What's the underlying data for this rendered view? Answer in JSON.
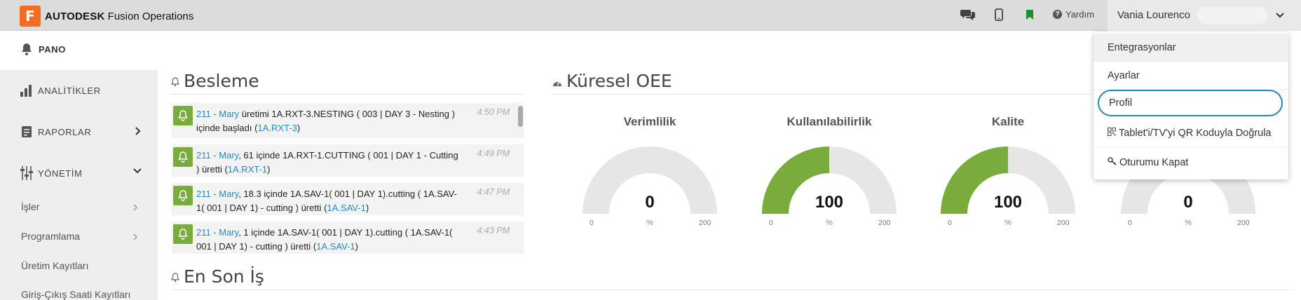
{
  "brand": {
    "logo_letter": "F",
    "name_bold": "AUTODESK",
    "name_rest": " Fusion Operations"
  },
  "topbar": {
    "chat_icon": "chat-bubbles-icon",
    "mobile_icon": "mobile-phone-icon",
    "bookmark_icon": "bookmark-icon",
    "help_label": "Yardım",
    "user_name": "Vania Lourenco"
  },
  "sidebar": {
    "pano": "PANO",
    "analytics": "ANALİTİKLER",
    "reports": "RAPORLAR",
    "management": "YÖNETİM",
    "sub_items": [
      "İşler",
      "Programlama",
      "Üretim Kayıtları",
      "Giriş-Çıkış Saati Kayıtları"
    ]
  },
  "feed": {
    "title": "Besleme",
    "items": [
      {
        "who": "211 - Mary",
        "text": " üretimi 1A.RXT-3.NESTING ( 003 | DAY 3 - Nesting ) içinde başladı (",
        "link": "1A.RXT-3",
        "end": ")",
        "time": "4:50 PM"
      },
      {
        "who": "211 - Mary",
        "text": ", 61 içinde 1A.RXT-1.CUTTING ( 001 | DAY 1 - Cutting ) üretti (",
        "link": "1A.RXT-1",
        "end": ")",
        "time": "4:49 PM"
      },
      {
        "who": "211 - Mary",
        "text": ", 18.3 içinde 1A.SAV-1( 001 | DAY 1).cutting ( 1A.SAV-1( 001 | DAY 1) - cutting ) üretti (",
        "link": "1A.SAV-1",
        "end": ")",
        "time": "4:47 PM"
      },
      {
        "who": "211 - Mary",
        "text": ", 1 içinde 1A.SAV-1( 001 | DAY 1).cutting ( 1A.SAV-1( 001 | DAY 1) - cutting ) üretti (",
        "link": "1A.SAV-1",
        "end": ")",
        "time": "4:43 PM"
      }
    ]
  },
  "oee": {
    "title": "Küresel OEE",
    "gauges": [
      {
        "title": "Verimlilik",
        "value": "0",
        "unit": "%",
        "min": "0",
        "max": "200",
        "fill_fraction": 0
      },
      {
        "title": "Kullanılabilirlik",
        "value": "100",
        "unit": "%",
        "min": "0",
        "max": "200",
        "fill_fraction": 0.5
      },
      {
        "title": "Kalite",
        "value": "100",
        "unit": "%",
        "min": "0",
        "max": "200",
        "fill_fraction": 0.5
      },
      {
        "title": "",
        "value": "0",
        "unit": "%",
        "min": "0",
        "max": "200",
        "fill_fraction": 0
      }
    ]
  },
  "recent_job": {
    "title": "En Son İş"
  },
  "dropdown": {
    "items": [
      "Entegrasyonlar",
      "Ayarlar",
      "Profil",
      "Tablet'i/TV'yi QR Koduyla Doğrula",
      "Oturumu Kapat"
    ]
  },
  "colors": {
    "accent_green": "#7aab3d",
    "link_blue": "#1e8bc3",
    "brand_orange": "#f26d21",
    "gauge_gray": "#e6e6e6"
  }
}
